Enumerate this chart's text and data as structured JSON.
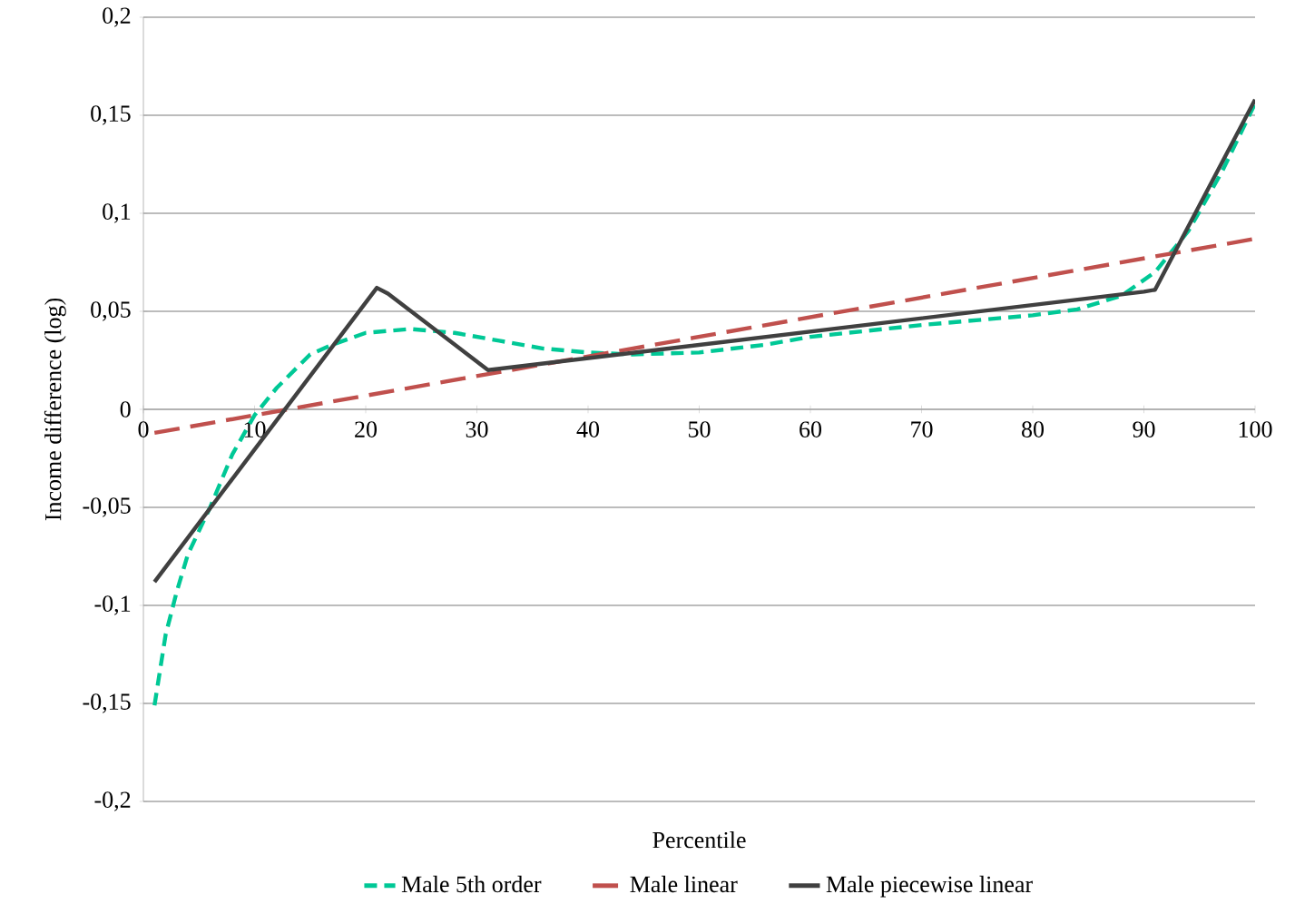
{
  "chart_data": {
    "type": "line",
    "xlabel": "Percentile",
    "ylabel": "Income difference (log)",
    "xlim": [
      0,
      100
    ],
    "ylim": [
      -0.2,
      0.2
    ],
    "xticks": [
      0,
      10,
      20,
      30,
      40,
      50,
      60,
      70,
      80,
      90,
      100
    ],
    "yticks": [
      {
        "value": -0.2,
        "label": "-0,2"
      },
      {
        "value": -0.15,
        "label": "-0,15"
      },
      {
        "value": -0.1,
        "label": "-0,1"
      },
      {
        "value": -0.05,
        "label": "-0,05"
      },
      {
        "value": 0,
        "label": "0"
      },
      {
        "value": 0.05,
        "label": "0,05"
      },
      {
        "value": 0.1,
        "label": "0,1"
      },
      {
        "value": 0.15,
        "label": "0,15"
      },
      {
        "value": 0.2,
        "label": "0,2"
      }
    ],
    "grid": "y",
    "legend": "bottom",
    "series": [
      {
        "name": "Male 5th order",
        "color": "#00c896",
        "line_style": "dotted",
        "x": [
          1,
          2,
          3,
          4,
          6,
          8,
          10,
          12,
          15,
          17,
          20,
          24,
          28,
          32,
          36,
          40,
          44,
          50,
          56,
          60,
          70,
          80,
          84,
          88,
          91,
          94,
          97,
          100
        ],
        "values": [
          -0.151,
          -0.115,
          -0.093,
          -0.074,
          -0.05,
          -0.023,
          -0.003,
          0.011,
          0.028,
          0.033,
          0.039,
          0.041,
          0.039,
          0.035,
          0.031,
          0.029,
          0.028,
          0.029,
          0.033,
          0.037,
          0.043,
          0.048,
          0.051,
          0.058,
          0.07,
          0.091,
          0.121,
          0.156
        ]
      },
      {
        "name": "Male linear",
        "color": "#c0504d",
        "line_style": "dashed",
        "x": [
          1,
          100
        ],
        "values": [
          -0.012,
          0.087
        ]
      },
      {
        "name": "Male piecewise linear",
        "color": "#404040",
        "line_style": "solid",
        "x": [
          1,
          21,
          22,
          31,
          90,
          91,
          100
        ],
        "values": [
          -0.088,
          0.062,
          0.059,
          0.02,
          0.06,
          0.061,
          0.158
        ]
      }
    ]
  }
}
